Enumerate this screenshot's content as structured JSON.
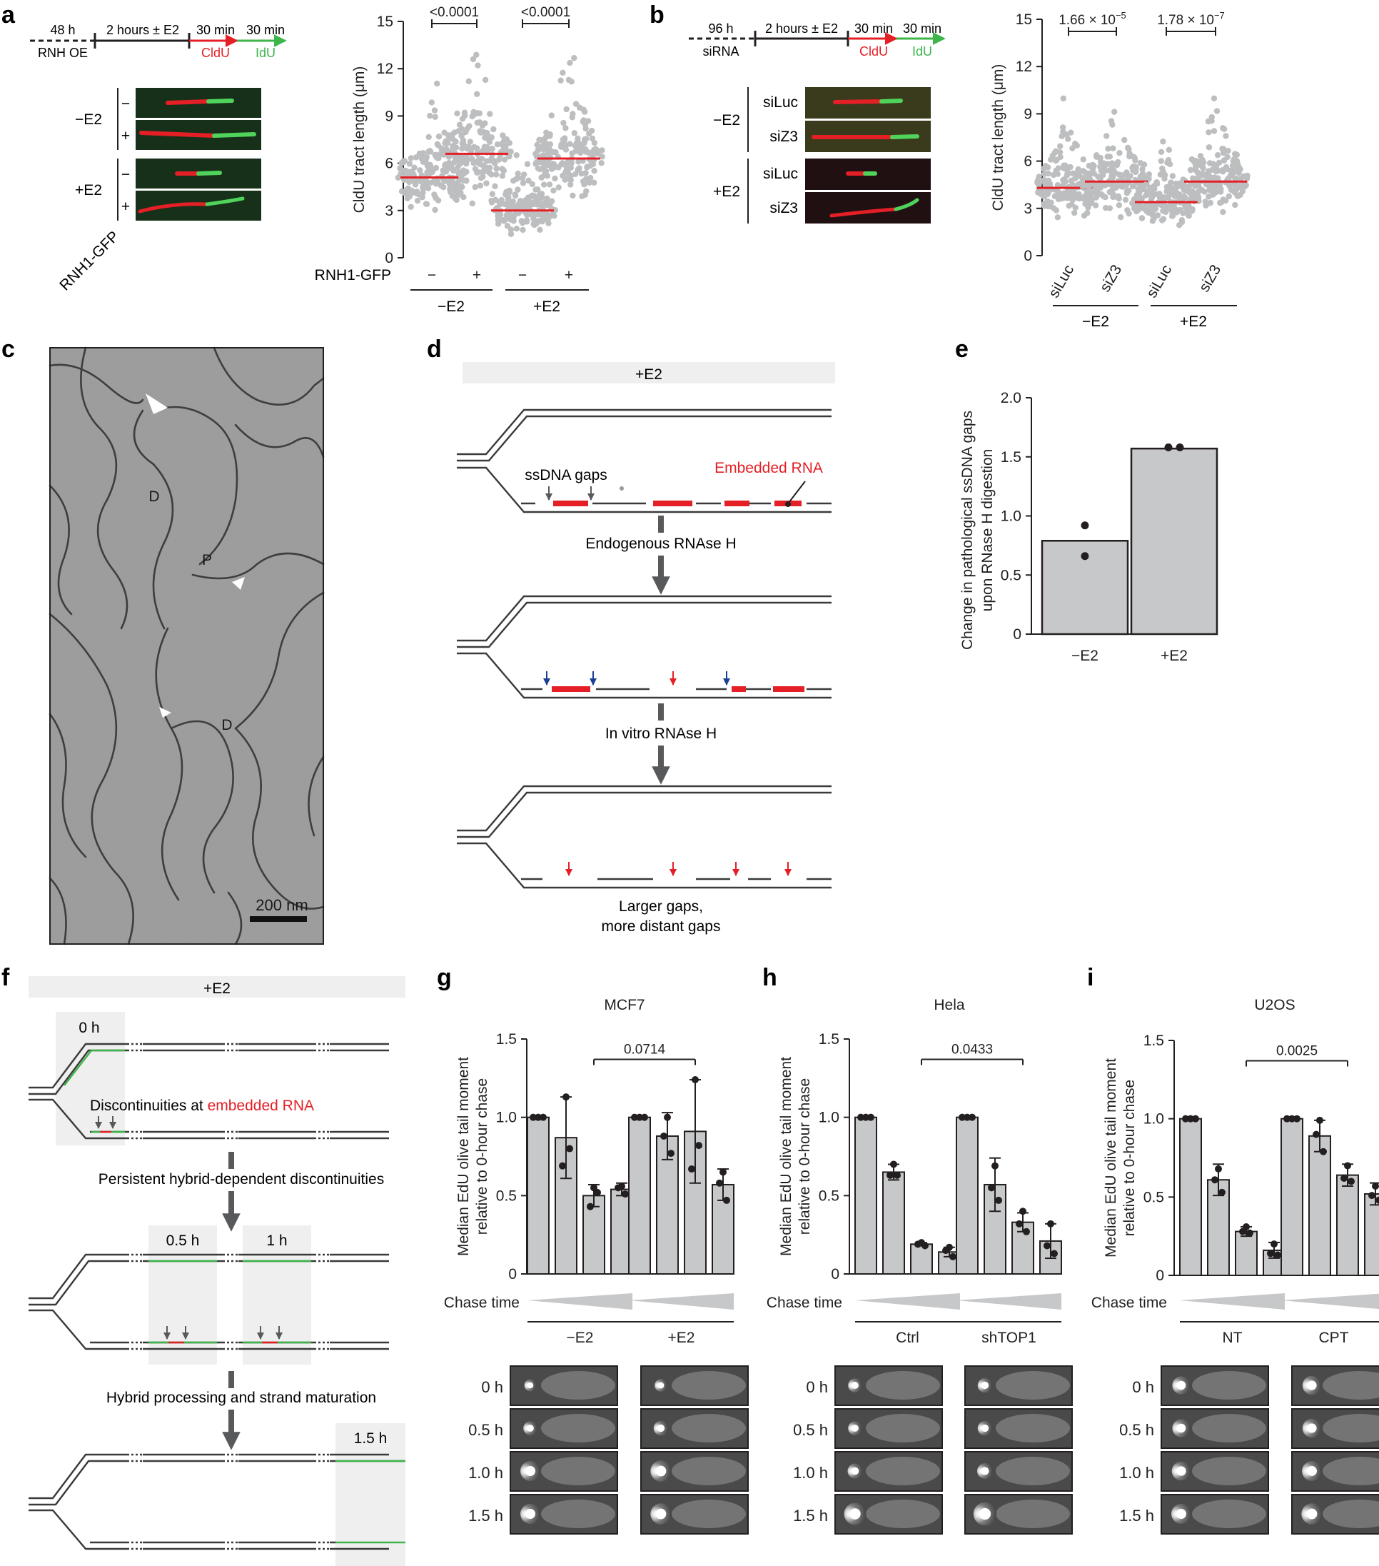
{
  "panels": {
    "a": "a",
    "b": "b",
    "c": "c",
    "d": "d",
    "e": "e",
    "f": "f",
    "g": "g",
    "h": "h",
    "i": "i"
  },
  "colors": {
    "red": "#e41f26",
    "green": "#3db54a",
    "grey_dot": "#bcbec0",
    "bar": "#c7c8ca",
    "dark": "#231f20",
    "shade": "#efefef",
    "arrow": "#58595b"
  },
  "panel_a": {
    "timeline": {
      "seg1_top": "48 h",
      "seg1_bottom": "RNH OE",
      "seg2_top": "2 hours ± E2",
      "seg3_top": "30 min",
      "seg3_bottom": "CldU",
      "seg4_top": "30 min",
      "seg4_bottom": "IdU"
    },
    "fiber_groups": [
      {
        "label": "−E2",
        "rows": [
          "−",
          "+"
        ]
      },
      {
        "label": "+E2",
        "rows": [
          "−",
          "+"
        ]
      }
    ],
    "fiber_axis_label": "RNH1-GFP",
    "row_label": "RNH1-GFP",
    "sign_minus": "−",
    "sign_plus": "+",
    "groups": [
      "−E2",
      "+E2"
    ]
  },
  "panel_b": {
    "timeline": {
      "seg1_top": "96 h",
      "seg1_bottom": "siRNA",
      "seg2_top": "2 hours ± E2",
      "seg3_top": "30 min",
      "seg3_bottom": "CldU",
      "seg4_top": "30 min",
      "seg4_bottom": "IdU"
    },
    "fiber_groups": [
      {
        "label": "−E2",
        "rows": [
          "siLuc",
          "siZ3"
        ]
      },
      {
        "label": "+E2",
        "rows": [
          "siLuc",
          "siZ3"
        ]
      }
    ],
    "groups": [
      "−E2",
      "+E2"
    ]
  },
  "panel_c": {
    "labels": [
      "D",
      "P",
      "D"
    ],
    "scale_label": "200 nm"
  },
  "panel_d": {
    "header": "+E2",
    "ssdna_label": "ssDNA gaps",
    "rna_label": "Embedded RNA",
    "step1": "Endogenous RNAse H",
    "step2": "In vitro RNAse H",
    "result_line1": "Larger gaps,",
    "result_line2": "more distant gaps"
  },
  "panel_f": {
    "header": "+E2",
    "t0": "0 h",
    "disc_prefix": "Discontinuities at ",
    "disc_red": "embedded RNA",
    "step1": "Persistent hybrid-dependent discontinuities",
    "t05": "0.5 h",
    "t1": "1 h",
    "step2": "Hybrid processing and strand maturation",
    "t15": "1.5 h"
  },
  "comet_times": [
    "0 h",
    "0.5 h",
    "1.0 h",
    "1.5 h"
  ],
  "chase_label": "Chase time",
  "chart_data": [
    {
      "id": "a",
      "type": "scatter",
      "ylabel": "CldU tract length (μm)",
      "ylim": [
        0,
        15
      ],
      "yticks": [
        0,
        3,
        6,
        9,
        12,
        15
      ],
      "categories": [
        "−",
        "+",
        "−",
        "+"
      ],
      "groups": [
        "−E2",
        "+E2"
      ],
      "medians": [
        5.1,
        6.6,
        3.0,
        6.3
      ],
      "comparisons": [
        {
          "pair": [
            0,
            1
          ],
          "label": "<0.0001"
        },
        {
          "pair": [
            2,
            3
          ],
          "label": "<0.0001"
        }
      ]
    },
    {
      "id": "b",
      "type": "scatter",
      "ylabel": "CldU tract length (μm)",
      "ylim": [
        0,
        15
      ],
      "yticks": [
        0,
        3,
        6,
        9,
        12,
        15
      ],
      "categories": [
        "siLuc",
        "siZ3",
        "siLuc",
        "siZ3"
      ],
      "groups": [
        "−E2",
        "+E2"
      ],
      "medians": [
        4.3,
        4.7,
        3.4,
        4.7
      ],
      "comparisons": [
        {
          "pair": [
            0,
            1
          ],
          "label": "1.66 × 10",
          "exp": "−5"
        },
        {
          "pair": [
            2,
            3
          ],
          "label": "1.78 × 10",
          "exp": "−7"
        }
      ]
    },
    {
      "id": "e",
      "type": "bar",
      "ylabel_line1": "Change in pathological ssDNA gaps",
      "ylabel_line2": "upon RNase H digestion",
      "ylim": [
        0,
        2.0
      ],
      "yticks": [
        "0",
        "0.5",
        "1.0",
        "1.5",
        "2.0"
      ],
      "categories": [
        "−E2",
        "+E2"
      ],
      "values": [
        0.79,
        1.57
      ],
      "points": [
        [
          0.92,
          0.66
        ],
        [
          1.58,
          1.58
        ]
      ]
    },
    {
      "id": "g",
      "type": "bar",
      "title": "MCF7",
      "ylabel_line1": "Median EdU olive tail moment",
      "ylabel_line2": "relative to 0-hour chase",
      "ylim": [
        0,
        1.5
      ],
      "yticks": [
        "0",
        "0.5",
        "1.0",
        "1.5"
      ],
      "groups": [
        "−E2",
        "+E2"
      ],
      "values": [
        [
          1.0,
          0.87,
          0.5,
          0.54
        ],
        [
          1.0,
          0.88,
          0.91,
          0.57
        ]
      ],
      "errors": [
        [
          0,
          0.26,
          0.07,
          0.04
        ],
        [
          0,
          0.15,
          0.33,
          0.1
        ]
      ],
      "points": [
        [
          [
            1,
            1,
            1
          ],
          [
            1.13,
            0.69,
            0.8
          ],
          [
            0.55,
            0.43,
            0.52
          ],
          [
            0.56,
            0.55,
            0.51
          ]
        ],
        [
          [
            1,
            1,
            1
          ],
          [
            1.0,
            0.88,
            0.77
          ],
          [
            1.24,
            0.67,
            0.82
          ],
          [
            0.65,
            0.58,
            0.47
          ]
        ]
      ],
      "comparison": {
        "label": "0.0714",
        "from": [
          0,
          2
        ],
        "to": [
          1,
          2
        ],
        "y": 1.37
      }
    },
    {
      "id": "h",
      "type": "bar",
      "title": "Hela",
      "ylabel_line1": "Median EdU olive tail moment",
      "ylabel_line2": "relative to 0-hour chase",
      "ylim": [
        0,
        1.5
      ],
      "yticks": [
        "0",
        "0.5",
        "1.0",
        "1.5"
      ],
      "groups": [
        "Ctrl",
        "shTOP1"
      ],
      "values": [
        [
          1.0,
          0.65,
          0.19,
          0.14
        ],
        [
          1.0,
          0.57,
          0.33,
          0.21
        ]
      ],
      "errors": [
        [
          0,
          0.05,
          0.01,
          0.03
        ],
        [
          0,
          0.17,
          0.06,
          0.11
        ]
      ],
      "points": [
        [
          [
            1,
            1,
            1
          ],
          [
            0.7,
            0.63,
            0.63
          ],
          [
            0.2,
            0.19,
            0.18
          ],
          [
            0.17,
            0.15,
            0.11
          ]
        ],
        [
          [
            1,
            1,
            1
          ],
          [
            0.69,
            0.55,
            0.47
          ],
          [
            0.4,
            0.32,
            0.27
          ],
          [
            0.32,
            0.18,
            0.13
          ]
        ]
      ],
      "comparison": {
        "label": "0.0433",
        "from": [
          0,
          2
        ],
        "to": [
          1,
          2
        ],
        "y": 1.37
      }
    },
    {
      "id": "i",
      "type": "bar",
      "title": "U2OS",
      "ylabel_line1": "Median EdU olive tail moment",
      "ylabel_line2": "relative to 0-hour chase",
      "ylim": [
        0,
        1.5
      ],
      "yticks": [
        "0",
        "0.5",
        "1.0",
        "1.5"
      ],
      "groups": [
        "NT",
        "CPT"
      ],
      "values": [
        [
          1.0,
          0.61,
          0.28,
          0.16
        ],
        [
          1.0,
          0.89,
          0.64,
          0.52
        ]
      ],
      "errors": [
        [
          0,
          0.1,
          0.03,
          0.05
        ],
        [
          0,
          0.1,
          0.07,
          0.07
        ]
      ],
      "points": [
        [
          [
            1,
            1,
            1
          ],
          [
            0.68,
            0.61,
            0.53
          ],
          [
            0.31,
            0.28,
            0.27
          ],
          [
            0.2,
            0.14,
            0.13
          ]
        ],
        [
          [
            1,
            1,
            1
          ],
          [
            0.99,
            0.9,
            0.79
          ],
          [
            0.7,
            0.62,
            0.6
          ],
          [
            0.57,
            0.51,
            0.48
          ]
        ]
      ],
      "comparison": {
        "label": "0.0025",
        "from": [
          0,
          2
        ],
        "to": [
          1,
          2
        ],
        "y": 1.37
      }
    }
  ]
}
